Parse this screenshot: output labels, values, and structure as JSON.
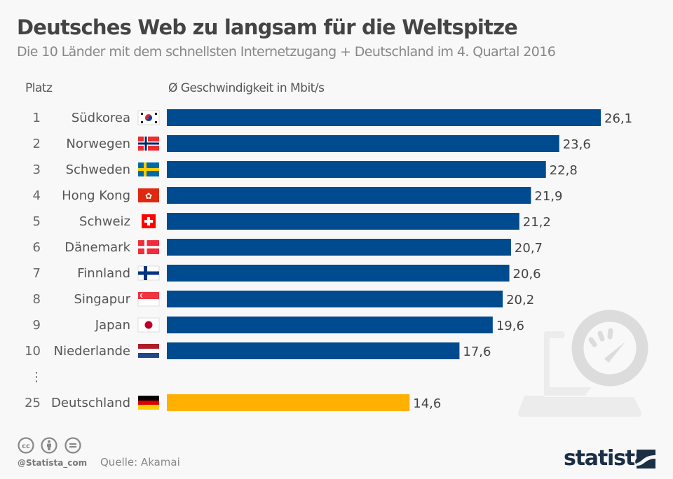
{
  "header": {
    "title": "Deutsches Web zu langsam für die Weltspitze",
    "subtitle": "Die 10 Länder mit dem schnellsten Internetzugang + Deutschland im 4. Quartal 2016"
  },
  "columns": {
    "rank": "Platz",
    "value": "Ø Geschwindigkeit in Mbit/s"
  },
  "chart_data": {
    "type": "bar",
    "orientation": "horizontal",
    "title": "Deutsches Web zu langsam für die Weltspitze",
    "subtitle": "Die 10 Länder mit dem schnellsten Internetzugang + Deutschland im 4. Quartal 2016",
    "xlabel": "Ø Geschwindigkeit in Mbit/s",
    "ylabel": "Platz",
    "xlim": [
      0,
      26.1
    ],
    "grid": false,
    "legend": "none",
    "colors": {
      "default": "#004a8f",
      "highlight": "#ffb000"
    },
    "gap_marker": "⋮",
    "rows": [
      {
        "rank": "1",
        "country": "Südkorea",
        "flag": "kr",
        "value": 26.1,
        "label": "26,1",
        "highlight": false
      },
      {
        "rank": "2",
        "country": "Norwegen",
        "flag": "no",
        "value": 23.6,
        "label": "23,6",
        "highlight": false
      },
      {
        "rank": "3",
        "country": "Schweden",
        "flag": "se",
        "value": 22.8,
        "label": "22,8",
        "highlight": false
      },
      {
        "rank": "4",
        "country": "Hong Kong",
        "flag": "hk",
        "value": 21.9,
        "label": "21,9",
        "highlight": false
      },
      {
        "rank": "5",
        "country": "Schweiz",
        "flag": "ch",
        "value": 21.2,
        "label": "21,2",
        "highlight": false
      },
      {
        "rank": "6",
        "country": "Dänemark",
        "flag": "dk",
        "value": 20.7,
        "label": "20,7",
        "highlight": false
      },
      {
        "rank": "7",
        "country": "Finnland",
        "flag": "fi",
        "value": 20.6,
        "label": "20,6",
        "highlight": false
      },
      {
        "rank": "8",
        "country": "Singapur",
        "flag": "sg",
        "value": 20.2,
        "label": "20,2",
        "highlight": false
      },
      {
        "rank": "9",
        "country": "Japan",
        "flag": "jp",
        "value": 19.6,
        "label": "19,6",
        "highlight": false
      },
      {
        "rank": "10",
        "country": "Niederlande",
        "flag": "nl",
        "value": 17.6,
        "label": "17,6",
        "highlight": false
      },
      {
        "rank": "25",
        "country": "Deutschland",
        "flag": "de",
        "value": 14.6,
        "label": "14,6",
        "highlight": true
      }
    ]
  },
  "decoration": {
    "icon": "speedometer-laptop-icon"
  },
  "footer": {
    "license_icons": [
      "cc-icon",
      "attribution-icon",
      "no-derivatives-icon"
    ],
    "handle": "@Statista_com",
    "source": "Quelle: Akamai",
    "brand": "statista"
  }
}
